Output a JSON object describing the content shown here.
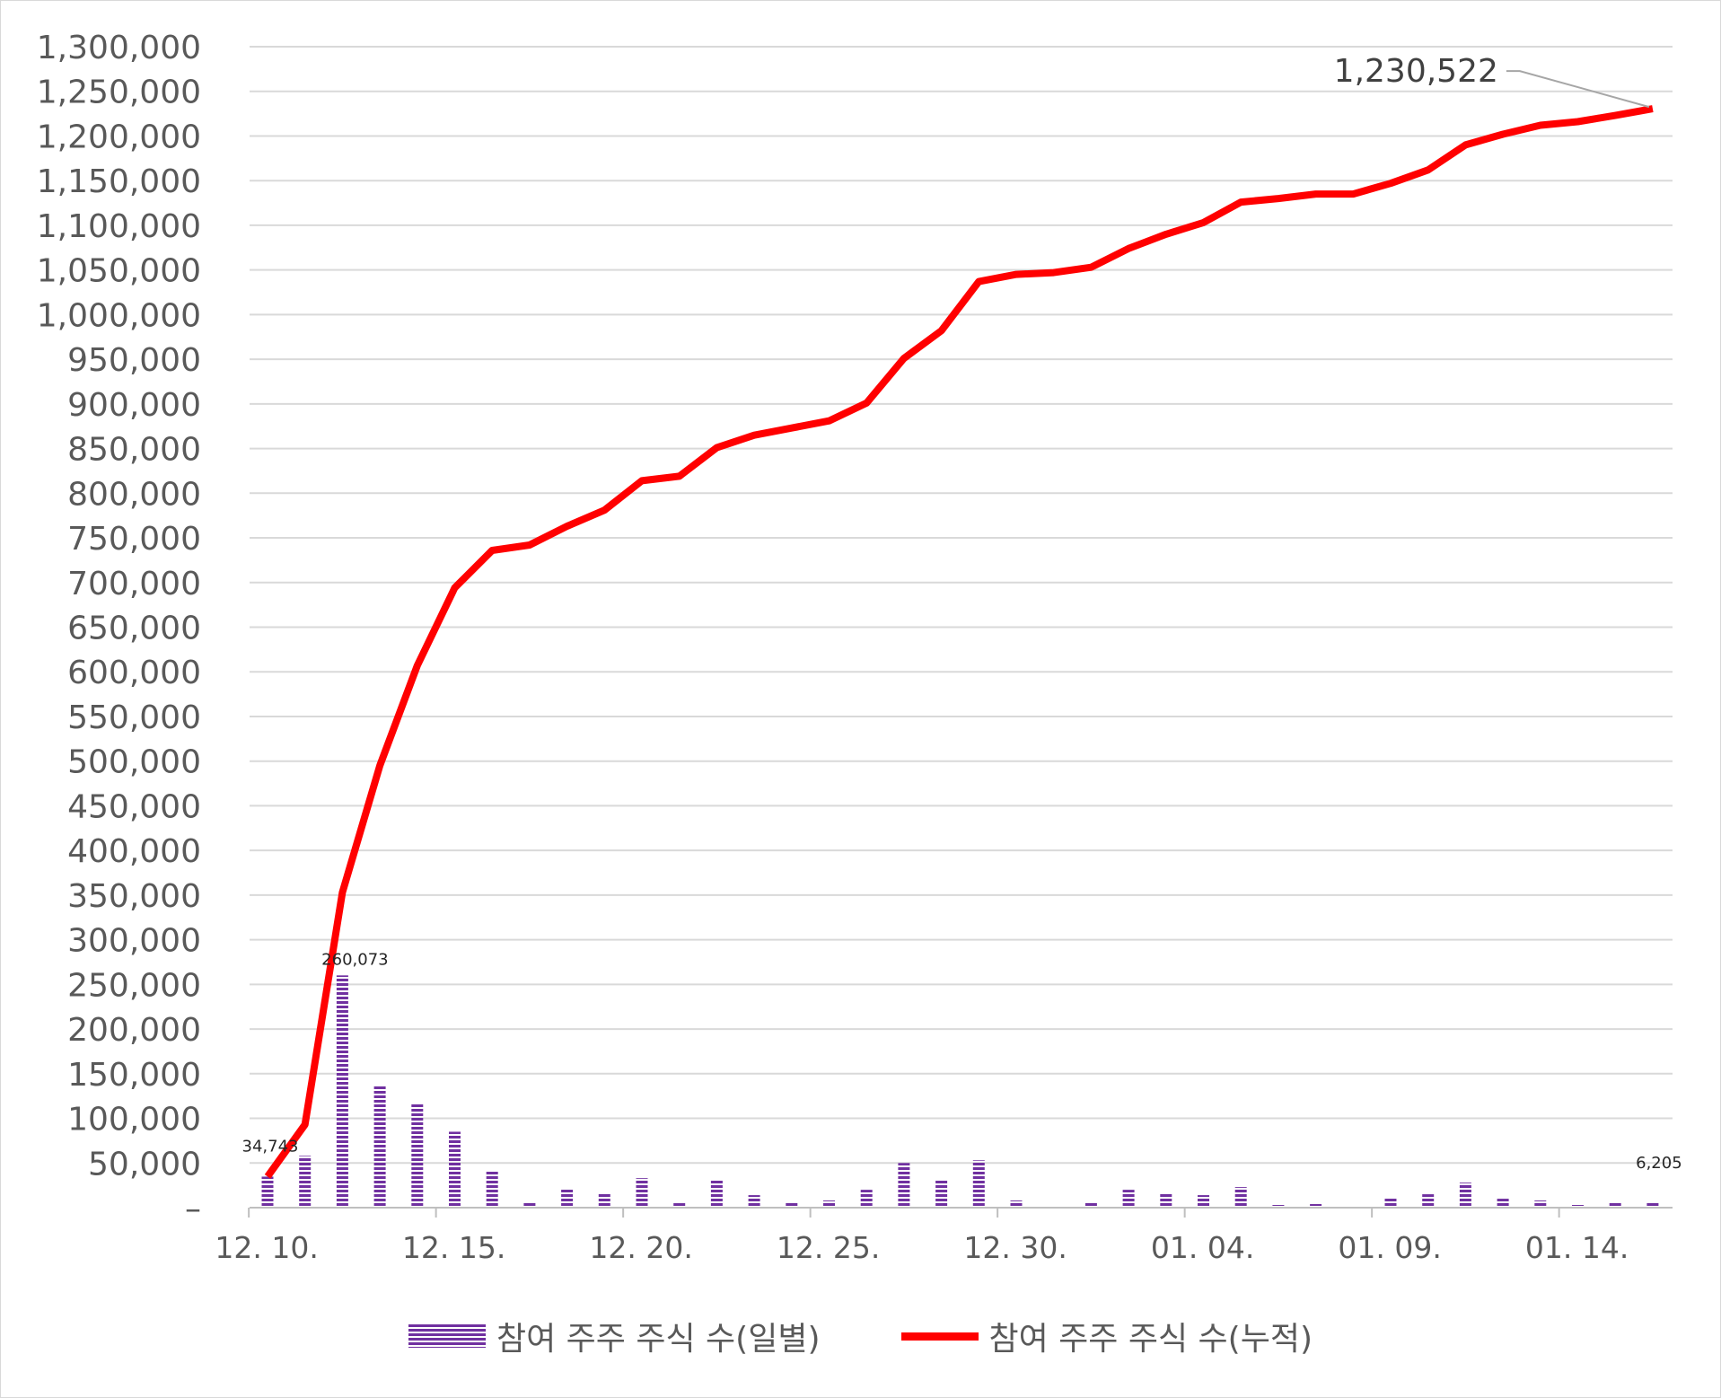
{
  "chart_data": {
    "type": "bar",
    "y_ticks": [
      "1,300,000",
      "1,250,000",
      "1,200,000",
      "1,150,000",
      "1,100,000",
      "1,050,000",
      "1,000,000",
      "950,000",
      "900,000",
      "850,000",
      "800,000",
      "750,000",
      "700,000",
      "650,000",
      "600,000",
      "550,000",
      "500,000",
      "450,000",
      "400,000",
      "350,000",
      "300,000",
      "250,000",
      "200,000",
      "150,000",
      "100,000",
      "50,000",
      "–"
    ],
    "ylim": [
      0,
      1300000
    ],
    "x_tick_labels": [
      "12. 10.",
      "12. 15.",
      "12. 20.",
      "12. 25.",
      "12. 30.",
      "01. 04.",
      "01. 09.",
      "01. 14."
    ],
    "x_tick_days": [
      0,
      5,
      10,
      15,
      20,
      25,
      30,
      35
    ],
    "days": [
      0,
      1,
      2,
      3,
      4,
      5,
      6,
      7,
      8,
      9,
      10,
      11,
      12,
      13,
      14,
      15,
      16,
      17,
      18,
      19,
      20,
      21,
      22,
      23,
      24,
      25,
      26,
      27,
      28,
      29,
      30,
      31,
      32,
      33,
      34,
      35,
      36,
      37
    ],
    "grid": true,
    "legend_position": "bottom",
    "series": [
      {
        "name": "참여 주주 주식 수(일별)",
        "type": "bar",
        "color": "#7030a0",
        "values": [
          34743,
          58000,
          260073,
          136000,
          116000,
          85000,
          42000,
          6000,
          21000,
          16000,
          33000,
          5000,
          31000,
          14000,
          7000,
          8000,
          20000,
          50000,
          31000,
          53000,
          8000,
          1000,
          6000,
          20000,
          16000,
          14000,
          23000,
          3000,
          4000,
          0,
          11000,
          15000,
          28000,
          10000,
          8000,
          3000,
          6000,
          6205
        ]
      },
      {
        "name": "참여 주주 주식 수(누적)",
        "type": "line",
        "color": "#ff0000",
        "values": [
          34743,
          93000,
          353000,
          495000,
          607000,
          694000,
          736000,
          742000,
          763000,
          781000,
          814000,
          819000,
          851000,
          865000,
          873000,
          881000,
          901000,
          951000,
          982000,
          1037000,
          1045000,
          1047000,
          1053000,
          1074000,
          1090000,
          1103000,
          1126000,
          1130000,
          1135000,
          1135000,
          1147000,
          1162000,
          1190000,
          1202000,
          1212000,
          1216000,
          1223000,
          1230522
        ]
      }
    ],
    "data_labels": [
      {
        "series": 0,
        "index": 0,
        "text": "34,743"
      },
      {
        "series": 0,
        "index": 2,
        "text": "260,073"
      },
      {
        "series": 0,
        "index": 37,
        "text": "6,205"
      },
      {
        "series": 1,
        "index": 37,
        "text": "1,230,522"
      }
    ]
  },
  "legend": {
    "daily_label": "참여 주주 주식 수(일별)",
    "cumulative_label": "참여 주주 주식 수(누적)"
  }
}
